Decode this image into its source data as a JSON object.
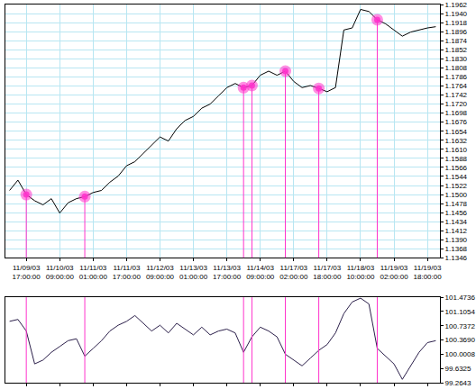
{
  "chart_data": [
    {
      "type": "line",
      "categories": [
        null,
        null,
        "11/09/03 17:00:00",
        null,
        null,
        null,
        "11/10/03 09:00:00",
        null,
        null,
        null,
        "11/11/03 01:00:00",
        null,
        null,
        null,
        "11/11/03 17:00:00",
        null,
        null,
        null,
        "11/12/03 09:00:00",
        null,
        null,
        null,
        "11/13/03 01:00:00",
        null,
        null,
        null,
        "11/13/03 17:00:00",
        null,
        null,
        null,
        "11/14/03 09:00:00",
        null,
        null,
        null,
        "11/17/03 02:00:00",
        null,
        null,
        null,
        "11/17/03 18:00:00",
        null,
        null,
        null,
        "11/18/03 10:00:00",
        null,
        null,
        null,
        "11/19/03 02:00:00",
        null,
        null,
        null,
        "11/19/03 18:00:00",
        null
      ],
      "series": [
        {
          "color": "#000000",
          "values": [
            1.151,
            1.1535,
            1.15,
            1.1485,
            1.1475,
            1.149,
            1.1455,
            1.148,
            1.149,
            1.1495,
            1.1505,
            1.151,
            1.153,
            1.1545,
            1.157,
            1.158,
            1.16,
            1.162,
            1.164,
            1.163,
            1.166,
            1.168,
            1.169,
            1.171,
            1.172,
            1.174,
            1.176,
            1.177,
            1.176,
            1.1765,
            1.179,
            1.18,
            1.179,
            1.18,
            1.1775,
            1.176,
            1.1765,
            1.1758,
            1.175,
            1.176,
            1.19,
            1.1905,
            1.195,
            1.1945,
            1.1925,
            1.1915,
            1.19,
            1.1885,
            1.1895,
            1.19,
            1.1905,
            1.1908
          ]
        }
      ],
      "highlights": [
        2,
        9,
        28,
        29,
        33,
        37,
        44
      ],
      "ylim": [
        1.1346,
        1.1962
      ],
      "yticks": [
        1.1346,
        1.1368,
        {
          "value": 1.139,
          "label": "1.1390"
        },
        1.1412,
        1.1434,
        1.1456,
        1.1478,
        {
          "value": 1.15,
          "label": "1.1500"
        },
        1.1522,
        1.1544,
        1.1566,
        1.1588,
        {
          "value": 1.161,
          "label": "1.1610"
        },
        1.1632,
        1.1654,
        1.1676,
        1.1698,
        {
          "value": 1.172,
          "label": "1.1720"
        },
        1.1742,
        1.1764,
        1.1786,
        1.1808,
        {
          "value": 1.183,
          "label": "1.1830"
        },
        1.1852,
        1.1874,
        1.1896,
        1.1918,
        {
          "value": 1.194,
          "label": "1.1940"
        },
        1.1962
      ],
      "grid": true
    },
    {
      "type": "line",
      "categories": [
        null,
        null,
        "11/09/03 17:00:00",
        null,
        null,
        null,
        "11/10/03 09:00:00",
        null,
        null,
        null,
        "11/11/03 01:00:00",
        null,
        null,
        null,
        "11/11/03 17:00:00",
        null,
        null,
        null,
        "11/12/03 09:00:00",
        null,
        null,
        null,
        "11/13/03 01:00:00",
        null,
        null,
        null,
        "11/13/03 17:00:00",
        null,
        null,
        null,
        "11/14/03 09:00:00",
        null,
        null,
        null,
        "11/17/03 02:00:00",
        null,
        null,
        null,
        "11/17/03 18:00:00",
        null,
        null,
        null,
        "11/18/03 10:00:00",
        null,
        null,
        null,
        "11/19/03 02:00:00",
        null,
        null,
        null,
        "11/19/03 18:00:00",
        null
      ],
      "series": [
        {
          "color": "#2b1f4a",
          "values": [
            100.85,
            100.9,
            100.6,
            99.75,
            99.85,
            100.05,
            100.2,
            100.35,
            100.4,
            99.95,
            100.15,
            100.35,
            100.6,
            100.75,
            100.85,
            101.0,
            100.8,
            100.6,
            100.75,
            100.55,
            100.8,
            100.65,
            100.5,
            100.7,
            100.5,
            100.6,
            100.65,
            100.55,
            100.05,
            100.45,
            100.7,
            100.6,
            100.45,
            100.0,
            99.85,
            99.7,
            99.9,
            100.1,
            100.25,
            100.55,
            101.05,
            101.35,
            101.45,
            101.3,
            100.15,
            99.95,
            99.75,
            99.35,
            99.7,
            100.05,
            100.3,
            100.35
          ]
        }
      ],
      "highlights": [
        2,
        9,
        28,
        29,
        33,
        37,
        44
      ],
      "ylim": [
        99.2643,
        101.4736
      ],
      "yticks": [
        99.2643,
        99.6325,
        100.0008,
        {
          "value": 100.369,
          "label": "100.3690"
        },
        100.7372,
        101.1054,
        101.4736
      ],
      "grid": false,
      "tick_labels": "y"
    }
  ]
}
